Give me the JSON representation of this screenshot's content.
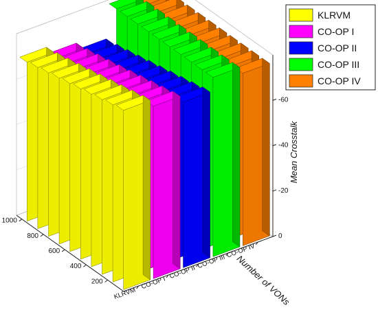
{
  "chart_data": {
    "type": "bar3d",
    "x_label": "Number of VONs",
    "z_label": "Mean Crosstalk",
    "x_ticks": [
      "200",
      "400",
      "600",
      "800",
      "1000"
    ],
    "z_ticks": [
      "0",
      "-20",
      "-40",
      "-60"
    ],
    "z_range": [
      0,
      -80
    ],
    "legend_position": "top-right",
    "x_values": [
      100,
      200,
      300,
      400,
      500,
      600,
      700,
      800,
      900,
      1000
    ],
    "series": [
      {
        "name": "KLRVM",
        "color": "#ffff00",
        "values": [
          -79,
          -78,
          -77,
          -76,
          -75,
          -74,
          -73,
          -72,
          -71,
          -70
        ]
      },
      {
        "name": "CO-OP I",
        "color": "#ff00ff",
        "values": [
          -76,
          -75,
          -74,
          -73,
          -72,
          -71,
          -70,
          -69,
          -68,
          -67
        ]
      },
      {
        "name": "CO-OP II",
        "color": "#0000ff",
        "values": [
          -73,
          -72,
          -71,
          -70,
          -69,
          -68,
          -67,
          -66,
          -65,
          -64
        ]
      },
      {
        "name": "CO-OP III",
        "color": "#00ff00",
        "values": [
          -79,
          -79,
          -79,
          -79,
          -79,
          -79,
          -79,
          -79,
          -79,
          -79
        ]
      },
      {
        "name": "CO-OP IV",
        "color": "#ff8000",
        "values": [
          -76,
          -76,
          -76,
          -76,
          -76,
          -76,
          -76,
          -76,
          -76,
          -76
        ]
      }
    ]
  }
}
